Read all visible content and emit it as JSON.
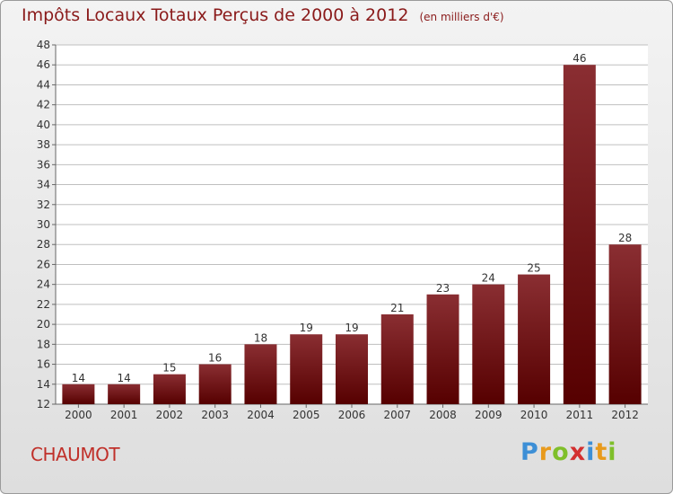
{
  "header": {
    "title": "Impôts Locaux Totaux Perçus de 2000 à 2012",
    "unit": "(en milliers d'€)"
  },
  "footer": {
    "town": "CHAUMOT",
    "logo_text": "Proxiti"
  },
  "colors": {
    "bar_top": "#8a2e32",
    "bar_bottom": "#560000",
    "title": "#8a1a1a",
    "town": "#c0302a",
    "grid": "#bfbfbf"
  },
  "chart_data": {
    "type": "bar",
    "title": "Impôts Locaux Totaux Perçus de 2000 à 2012",
    "subtitle": "(en milliers d'€)",
    "xlabel": "",
    "ylabel": "",
    "categories": [
      "2000",
      "2001",
      "2002",
      "2003",
      "2004",
      "2005",
      "2006",
      "2007",
      "2008",
      "2009",
      "2010",
      "2011",
      "2012"
    ],
    "values": [
      14,
      14,
      15,
      16,
      18,
      19,
      19,
      21,
      23,
      24,
      25,
      46,
      28
    ],
    "ylim": [
      12,
      48
    ],
    "yticks": [
      12,
      14,
      16,
      18,
      20,
      22,
      24,
      26,
      28,
      30,
      32,
      34,
      36,
      38,
      40,
      42,
      44,
      46,
      48
    ],
    "grid": true,
    "legend": "none"
  }
}
